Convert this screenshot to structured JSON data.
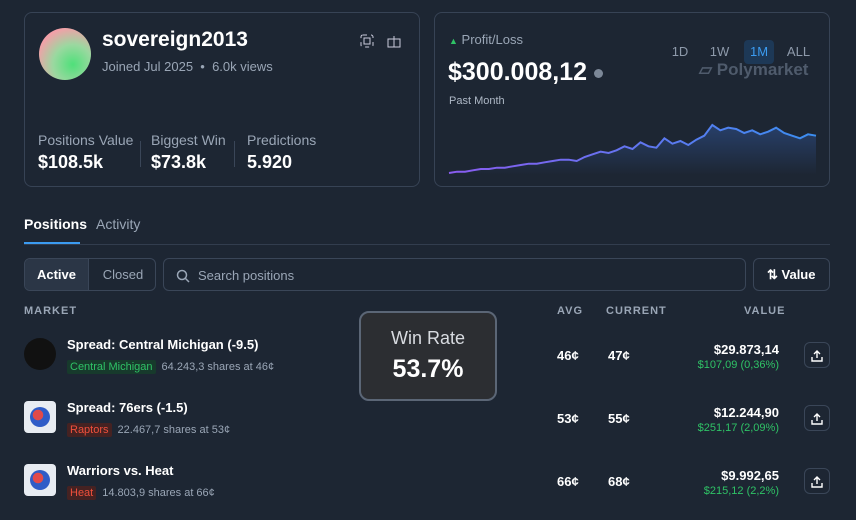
{
  "profile": {
    "username": "sovereign2013",
    "joined": "Joined Jul 2025",
    "views": "6.0k views"
  },
  "stats": [
    {
      "label": "Positions Value",
      "value": "$108.5k"
    },
    {
      "label": "Biggest Win",
      "value": "$73.8k"
    },
    {
      "label": "Predictions",
      "value": "5.920"
    }
  ],
  "pnl": {
    "label": "Profit/Loss",
    "amount": "$300.008,12",
    "period": "Past Month",
    "ranges": [
      "1D",
      "1W",
      "1M",
      "ALL"
    ],
    "active_range": "1M",
    "brand": "Polymarket",
    "sparkline": [
      2,
      3,
      3,
      4,
      5,
      5,
      6,
      6,
      7,
      8,
      9,
      9,
      10,
      11,
      12,
      12,
      11,
      14,
      16,
      18,
      17,
      19,
      22,
      20,
      25,
      22,
      21,
      28,
      24,
      26,
      23,
      27,
      30,
      38,
      34,
      36,
      35,
      32,
      34,
      31,
      33,
      36,
      32,
      30,
      28,
      31,
      30
    ]
  },
  "tabs": [
    "Positions",
    "Activity"
  ],
  "filters": [
    "Active",
    "Closed"
  ],
  "search_placeholder": "Search positions",
  "sort": "Value",
  "columns": [
    "MARKET",
    "AVG",
    "CURRENT",
    "VALUE"
  ],
  "rows": [
    {
      "title": "Spread: Central Michigan (-9.5)",
      "outcome": "Central Michigan",
      "outcome_color": "green",
      "shares": "64.243,3 shares at 46¢",
      "avg": "46¢",
      "current": "47¢",
      "value": "$29.873,14",
      "change": "$107,09 (0,36%)"
    },
    {
      "title": "Spread: 76ers (-1.5)",
      "outcome": "Raptors",
      "outcome_color": "red",
      "shares": "22.467,7 shares at 53¢",
      "avg": "53¢",
      "current": "55¢",
      "value": "$12.244,90",
      "change": "$251,17 (2,09%)"
    },
    {
      "title": "Warriors vs. Heat",
      "outcome": "Heat",
      "outcome_color": "red",
      "shares": "14.803,9 shares at 66¢",
      "avg": "66¢",
      "current": "68¢",
      "value": "$9.992,65",
      "change": "$215,12 (2,2%)"
    }
  ],
  "overlay": {
    "label": "Win Rate",
    "value": "53.7%"
  }
}
